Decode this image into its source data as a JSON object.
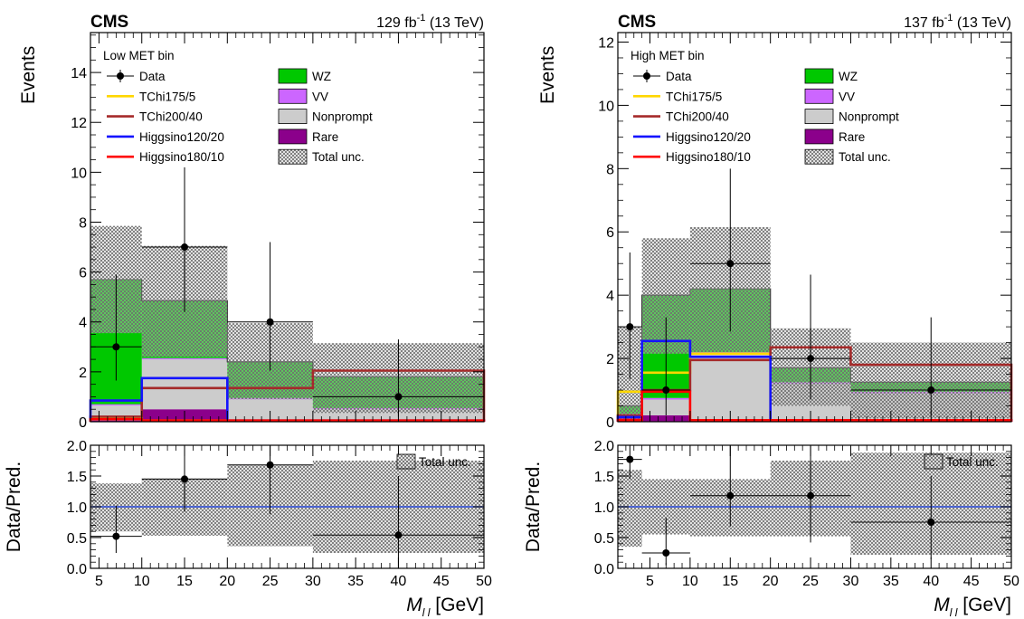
{
  "figure": {
    "xlabel_main": "M",
    "xlabel_sub": "l l",
    "xlabel_unit": "[GeV]",
    "ratio_ylabel": "Data/Pred.",
    "ratio_unc_label": "Total unc."
  },
  "colors": {
    "WZ": "#00c800",
    "VV": "#cc66ff",
    "Nonprompt": "#cccccc",
    "Rare": "#8b008b",
    "TChi175_5": "#ffd700",
    "TChi200_40": "#a52a2a",
    "Higgsino120_20": "#1414ff",
    "Higgsino180_10": "#ff0000",
    "ratio_line": "#3050e0",
    "hatch": "#6e6e6e"
  },
  "chart_data": [
    {
      "type": "bar",
      "experiment": "CMS",
      "lumi": "129 fb",
      "lumi_sup": "-1",
      "energy": "(13 TeV)",
      "bin_label": "Low MET bin",
      "ylabel": "Events",
      "ylim": [
        0,
        15.6
      ],
      "yticks": [
        0,
        2,
        4,
        6,
        8,
        10,
        12,
        14
      ],
      "xlim": [
        4,
        50
      ],
      "xticks": [
        5,
        10,
        15,
        20,
        25,
        30,
        35,
        40,
        45,
        50
      ],
      "bin_edges": [
        4,
        10,
        20,
        30,
        50
      ],
      "stack": [
        {
          "name": "Rare",
          "values": [
            0.05,
            0.5,
            0.05,
            0.05
          ]
        },
        {
          "name": "Nonprompt",
          "values": [
            0.6,
            2.0,
            0.85,
            0.45
          ]
        },
        {
          "name": "VV",
          "values": [
            0.05,
            0.05,
            0.05,
            0.05
          ]
        },
        {
          "name": "WZ",
          "values": [
            5.0,
            2.3,
            1.45,
            1.25
          ]
        }
      ],
      "total_unc": {
        "low": [
          3.55,
          2.6,
          0.9,
          0.35
        ],
        "high": [
          7.85,
          7.05,
          3.95,
          3.15
        ]
      },
      "overlay_data": [
        {
          "x": 5,
          "y": 5.7
        },
        {
          "x": 6,
          "y": 5.7
        },
        {
          "x": 20,
          "y": 4.9
        }
      ],
      "data": [
        {
          "x": 7,
          "y": 3,
          "xerr": [
            4,
            10
          ],
          "yerr": [
            1.65,
            5.9
          ]
        },
        {
          "x": 15,
          "y": 7,
          "xerr": [
            10,
            20
          ],
          "yerr": [
            4.4,
            10.2
          ]
        },
        {
          "x": 25,
          "y": 4,
          "xerr": [
            20,
            30
          ],
          "yerr": [
            2.05,
            7.2
          ]
        },
        {
          "x": 40,
          "y": 1,
          "xerr": [
            30,
            50
          ],
          "yerr": [
            0.2,
            3.3
          ]
        }
      ],
      "signals": [
        {
          "name": "TChi175/5",
          "key": "TChi175_5",
          "values": [
            0.15,
            0.05,
            0.05,
            0.05
          ]
        },
        {
          "name": "TChi200/40",
          "key": "TChi200_40",
          "values": [
            0.2,
            1.35,
            1.35,
            2.05
          ]
        },
        {
          "name": "Higgsino120/20",
          "key": "Higgsino120_20",
          "values": [
            0.85,
            1.75,
            0.05,
            0.05
          ]
        },
        {
          "name": "Higgsino180/10",
          "key": "Higgsino180_10",
          "values": [
            0.1,
            0.05,
            0.05,
            0.05
          ]
        }
      ],
      "legend": {
        "left": [
          {
            "label": "Data",
            "kind": "data"
          },
          {
            "label": "TChi175/5",
            "kind": "line",
            "key": "TChi175_5"
          },
          {
            "label": "TChi200/40",
            "kind": "line",
            "key": "TChi200_40"
          },
          {
            "label": "Higgsino120/20",
            "kind": "line",
            "key": "Higgsino120_20"
          },
          {
            "label": "Higgsino180/10",
            "kind": "line",
            "key": "Higgsino180_10"
          }
        ],
        "right": [
          {
            "label": "WZ",
            "kind": "box",
            "key": "WZ"
          },
          {
            "label": "VV",
            "kind": "box",
            "key": "VV"
          },
          {
            "label": "Nonprompt",
            "kind": "box",
            "key": "Nonprompt"
          },
          {
            "label": "Rare",
            "kind": "box",
            "key": "Rare"
          },
          {
            "label": "Total unc.",
            "kind": "hatch"
          }
        ]
      },
      "ratio": {
        "ylim": [
          0,
          2
        ],
        "yticks": [
          0.0,
          0.5,
          1.0,
          1.5,
          2.0
        ],
        "points": [
          {
            "x": 7,
            "y": 0.52,
            "xerr": [
              4,
              10
            ],
            "yerr": [
              0.25,
              1.02
            ]
          },
          {
            "x": 15,
            "y": 1.45,
            "xerr": [
              10,
              20
            ],
            "yerr": [
              0.92,
              2.0
            ]
          },
          {
            "x": 25,
            "y": 1.68,
            "xerr": [
              20,
              30
            ],
            "yerr": [
              0.88,
              2.0
            ]
          },
          {
            "x": 40,
            "y": 0.54,
            "xerr": [
              30,
              50
            ],
            "yerr": [
              0.0,
              1.5
            ]
          }
        ],
        "unc_low": [
          0.6,
          0.53,
          0.36,
          0.25
        ],
        "unc_high": [
          1.38,
          1.46,
          1.67,
          1.75
        ]
      }
    },
    {
      "type": "bar",
      "experiment": "CMS",
      "lumi": "137 fb",
      "lumi_sup": "-1",
      "energy": "(13 TeV)",
      "bin_label": "High MET bin",
      "ylabel": "Events",
      "ylim": [
        0,
        12.3
      ],
      "yticks": [
        0,
        2,
        4,
        6,
        8,
        10,
        12
      ],
      "xlim": [
        1,
        50
      ],
      "xticks": [
        5,
        10,
        15,
        20,
        25,
        30,
        35,
        40,
        45,
        50
      ],
      "bin_edges": [
        1,
        4,
        10,
        20,
        30,
        50
      ],
      "stack": [
        {
          "name": "Rare",
          "values": [
            0.15,
            0.2,
            0.05,
            0.05,
            0.05
          ]
        },
        {
          "name": "Nonprompt",
          "values": [
            0.05,
            0.5,
            2.1,
            1.15,
            0.85
          ]
        },
        {
          "name": "VV",
          "values": [
            0.05,
            0.05,
            0.05,
            0.05,
            0.05
          ]
        },
        {
          "name": "WZ",
          "values": [
            0.25,
            3.25,
            2.0,
            0.45,
            0.3
          ]
        }
      ],
      "total_unc": {
        "low": [
          0.1,
          2.15,
          2.2,
          0.5,
          0.1
        ],
        "high": [
          3.0,
          5.8,
          6.15,
          2.95,
          2.5
        ]
      },
      "overlay_data": [],
      "data": [
        {
          "x": 2.5,
          "y": 3,
          "xerr": [
            1,
            4
          ],
          "yerr": [
            1.35,
            5.35
          ]
        },
        {
          "x": 7,
          "y": 1,
          "xerr": [
            4,
            10
          ],
          "yerr": [
            0.2,
            3.3
          ]
        },
        {
          "x": 15,
          "y": 5,
          "xerr": [
            10,
            20
          ],
          "yerr": [
            2.85,
            8.0
          ]
        },
        {
          "x": 25,
          "y": 2,
          "xerr": [
            20,
            30
          ],
          "yerr": [
            0.7,
            4.65
          ]
        },
        {
          "x": 40,
          "y": 1,
          "xerr": [
            30,
            50
          ],
          "yerr": [
            0.2,
            3.3
          ]
        }
      ],
      "signals": [
        {
          "name": "TChi175/5",
          "key": "TChi175_5",
          "values": [
            0.95,
            1.55,
            2.15,
            0.05,
            0.05
          ]
        },
        {
          "name": "TChi200/40",
          "key": "TChi200_40",
          "values": [
            0.2,
            1.0,
            1.95,
            2.35,
            1.8
          ]
        },
        {
          "name": "Higgsino120/20",
          "key": "Higgsino120_20",
          "values": [
            0.15,
            2.55,
            2.05,
            0.05,
            0.05
          ]
        },
        {
          "name": "Higgsino180/10",
          "key": "Higgsino180_10",
          "values": [
            0.05,
            0.95,
            0.05,
            0.05,
            0.05
          ]
        }
      ],
      "legend": {
        "left": [
          {
            "label": "Data",
            "kind": "data"
          },
          {
            "label": "TChi175/5",
            "kind": "line",
            "key": "TChi175_5"
          },
          {
            "label": "TChi200/40",
            "kind": "line",
            "key": "TChi200_40"
          },
          {
            "label": "Higgsino120/20",
            "kind": "line",
            "key": "Higgsino120_20"
          },
          {
            "label": "Higgsino180/10",
            "kind": "line",
            "key": "Higgsino180_10"
          }
        ],
        "right": [
          {
            "label": "WZ",
            "kind": "box",
            "key": "WZ"
          },
          {
            "label": "VV",
            "kind": "box",
            "key": "VV"
          },
          {
            "label": "Nonprompt",
            "kind": "box",
            "key": "Nonprompt"
          },
          {
            "label": "Rare",
            "kind": "box",
            "key": "Rare"
          },
          {
            "label": "Total unc.",
            "kind": "hatch"
          }
        ]
      },
      "ratio": {
        "ylim": [
          0,
          2
        ],
        "yticks": [
          0.0,
          0.5,
          1.0,
          1.5,
          2.0
        ],
        "points": [
          {
            "x": 2.5,
            "y": 1.77,
            "xerr": [
              1,
              4
            ],
            "yerr": [
              1.45,
              2.0
            ]
          },
          {
            "x": 7,
            "y": 0.25,
            "xerr": [
              4,
              10
            ],
            "yerr": [
              0.05,
              0.82
            ]
          },
          {
            "x": 15,
            "y": 1.18,
            "xerr": [
              10,
              20
            ],
            "yerr": [
              0.68,
              2.0
            ]
          },
          {
            "x": 25,
            "y": 1.18,
            "xerr": [
              20,
              30
            ],
            "yerr": [
              0.42,
              2.0
            ]
          },
          {
            "x": 40,
            "y": 0.75,
            "xerr": [
              30,
              50
            ],
            "yerr": [
              0.15,
              1.5
            ]
          }
        ],
        "unc_low": [
          0.35,
          0.55,
          0.52,
          0.52,
          0.22
        ],
        "unc_high": [
          1.6,
          1.45,
          1.45,
          1.75,
          1.88
        ]
      }
    }
  ]
}
